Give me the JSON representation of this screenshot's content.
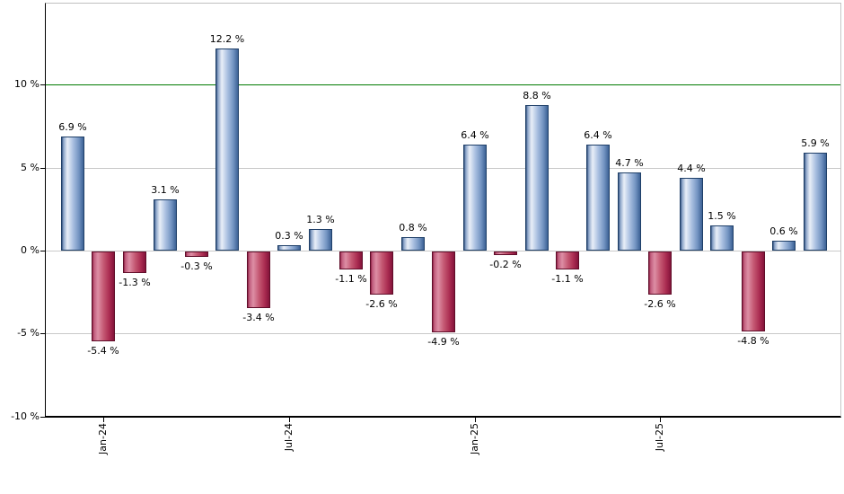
{
  "chart_data": {
    "type": "bar",
    "title": "",
    "xlabel": "",
    "ylabel": "",
    "ylim": [
      -10,
      15
    ],
    "grid": true,
    "legend": false,
    "values": [
      6.9,
      -5.4,
      -1.3,
      3.1,
      -0.3,
      12.2,
      -3.4,
      0.3,
      1.3,
      -1.1,
      -2.6,
      0.8,
      -4.9,
      6.4,
      -0.2,
      8.8,
      -1.1,
      6.4,
      4.7,
      -2.6,
      4.4,
      1.5,
      -4.8,
      0.6,
      5.9
    ],
    "bar_labels": [
      "6.9 %",
      "-5.4 %",
      "-1.3 %",
      "3.1 %",
      "-0.3 %",
      "12.2 %",
      "-3.4 %",
      "0.3 %",
      "1.3 %",
      "-1.1 %",
      "-2.6 %",
      "0.8 %",
      "-4.9 %",
      "6.4 %",
      "-0.2 %",
      "8.8 %",
      "-1.1 %",
      "6.4 %",
      "4.7 %",
      "-2.6 %",
      "4.4 %",
      "1.5 %",
      "-4.8 %",
      "0.6 %",
      "5.9 %"
    ],
    "x_ticks": [
      {
        "label": "Jan-24",
        "bar_index": 1
      },
      {
        "label": "Jul-24",
        "bar_index": 7
      },
      {
        "label": "Jan-25",
        "bar_index": 13
      },
      {
        "label": "Jul-25",
        "bar_index": 19
      }
    ],
    "y_ticks": [
      {
        "label": "10 %",
        "value": 10
      },
      {
        "label": "5 %",
        "value": 5
      },
      {
        "label": "0 %",
        "value": 0
      },
      {
        "label": "-5 %",
        "value": -5
      },
      {
        "label": "-10 %",
        "value": -10
      }
    ],
    "reference_line": {
      "value": 10
    },
    "colors": {
      "background": "#ffffff",
      "grid_line": "#c9c9c9",
      "reference_line": "#007a00",
      "axis": "#000000",
      "frame": "#c0c0c0",
      "label_text": "#000000",
      "positive_border": "#1f3f68",
      "positive_gradient": [
        "#33527e",
        "#8aa3c8",
        "#e9eff8",
        "#a9bfe0",
        "#7495c2",
        "#3d6296"
      ],
      "negative_border": "#5f0d29",
      "negative_gradient": [
        "#8c1f44",
        "#c05c7c",
        "#dd8ea5",
        "#c45872",
        "#ab2d52",
        "#84133a"
      ]
    }
  }
}
